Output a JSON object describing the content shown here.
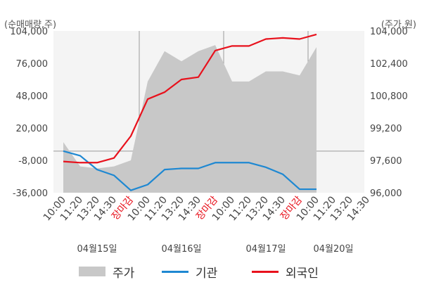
{
  "units": {
    "left": "(순매매량,주)",
    "right": "(주가,원)"
  },
  "colors": {
    "price_area": "#c8c8c8",
    "institution": "#1e88d2",
    "foreign": "#e8111c",
    "closed_label": "#e8111c",
    "plot_bg": "#f4f4f4",
    "grid": "#d8d8d8"
  },
  "legend": [
    {
      "label": "주가",
      "kind": "area",
      "color": "#c8c8c8"
    },
    {
      "label": "기관",
      "kind": "line",
      "color": "#1e88d2"
    },
    {
      "label": "외국인",
      "kind": "line",
      "color": "#e8111c"
    }
  ],
  "chart_data": {
    "type": "line",
    "left_axis": {
      "min": -36000,
      "max": 104000,
      "ticks": [
        "104,000",
        "76,000",
        "48,000",
        "20,000",
        "-8,000",
        "-36,000"
      ]
    },
    "right_axis": {
      "min": 96000,
      "max": 104000,
      "ticks": [
        "104,000",
        "102,400",
        "100,800",
        "99,200",
        "97,600",
        "96,000"
      ]
    },
    "x_tick_labels": [
      "10:00",
      "11:20",
      "13:20",
      "14:30",
      "장마감",
      "10:00",
      "11:20",
      "13:20",
      "14:30",
      "장마감",
      "10:00",
      "11:20",
      "13:20",
      "14:30",
      "장마감",
      "10:00",
      "11:20",
      "13:20",
      "14:30"
    ],
    "closed_label": "장마감",
    "day_labels": [
      "04월15일",
      "04월16일",
      "04월17일",
      "04월20일"
    ],
    "day_label_slots": [
      2,
      7,
      12,
      16
    ],
    "day_boundaries": [
      4.5,
      9.5,
      14.5
    ],
    "series": [
      {
        "name": "기관",
        "axis": "left",
        "points": [
          [
            0,
            0
          ],
          [
            1,
            -4000
          ],
          [
            2,
            -16000
          ],
          [
            3,
            -21000
          ],
          [
            4,
            -34000
          ],
          [
            5,
            -29000
          ],
          [
            6,
            -16000
          ],
          [
            7,
            -15000
          ],
          [
            8,
            -15000
          ],
          [
            9,
            -10000
          ],
          [
            10,
            -10000
          ],
          [
            11,
            -10000
          ],
          [
            12,
            -14000
          ],
          [
            13,
            -20000
          ],
          [
            14,
            -33000
          ],
          [
            15,
            -33000
          ]
        ]
      },
      {
        "name": "외국인",
        "axis": "left",
        "points": [
          [
            0,
            -9000
          ],
          [
            1,
            -10000
          ],
          [
            2,
            -10000
          ],
          [
            3,
            -6000
          ],
          [
            4,
            13000
          ],
          [
            5,
            45000
          ],
          [
            6,
            51000
          ],
          [
            7,
            62000
          ],
          [
            8,
            64000
          ],
          [
            9,
            87000
          ],
          [
            10,
            91000
          ],
          [
            11,
            91000
          ],
          [
            12,
            97000
          ],
          [
            13,
            98000
          ],
          [
            14,
            97000
          ],
          [
            15,
            101000
          ]
        ]
      },
      {
        "name": "주가",
        "axis": "right",
        "points": [
          [
            0,
            98500
          ],
          [
            1,
            97300
          ],
          [
            2,
            97200
          ],
          [
            3,
            97300
          ],
          [
            4,
            97600
          ],
          [
            5,
            101500
          ],
          [
            6,
            103000
          ],
          [
            7,
            102500
          ],
          [
            8,
            103000
          ],
          [
            9,
            103300
          ],
          [
            10,
            101500
          ],
          [
            11,
            101500
          ],
          [
            12,
            102000
          ],
          [
            13,
            102000
          ],
          [
            14,
            101800
          ],
          [
            15,
            103200
          ]
        ]
      }
    ]
  }
}
